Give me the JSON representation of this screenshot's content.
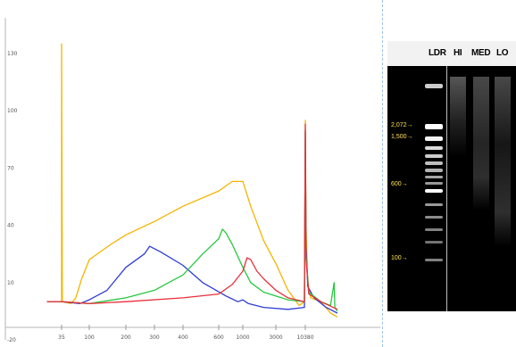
{
  "chart_data": {
    "type": "line",
    "title": "",
    "xlabel": "",
    "ylabel": "",
    "x_tick_labels": [
      "35",
      "100",
      "200",
      "300",
      "400",
      "600",
      "1000",
      "3000",
      "10380"
    ],
    "y_tick_labels": [
      "130",
      "100",
      "70",
      "40",
      "10",
      "-20"
    ],
    "ylim": [
      -20,
      130
    ],
    "grid": false,
    "series": [
      {
        "color": "#f5b400",
        "points": [
          [
            35,
            0
          ],
          [
            35,
            135
          ],
          [
            36,
            0
          ],
          [
            50,
            -1
          ],
          [
            60,
            2
          ],
          [
            75,
            12
          ],
          [
            100,
            22
          ],
          [
            150,
            30
          ],
          [
            200,
            35
          ],
          [
            300,
            42
          ],
          [
            400,
            50
          ],
          [
            600,
            58
          ],
          [
            800,
            63
          ],
          [
            1000,
            63
          ],
          [
            1300,
            50
          ],
          [
            2000,
            32
          ],
          [
            3000,
            20
          ],
          [
            5000,
            6
          ],
          [
            8000,
            -2
          ],
          [
            10000,
            0
          ],
          [
            10380,
            95
          ],
          [
            10700,
            40
          ],
          [
            11500,
            10
          ],
          [
            13000,
            2
          ],
          [
            20000,
            0
          ],
          [
            30000,
            -6
          ],
          [
            40000,
            -8
          ]
        ]
      },
      {
        "color": "#2e3cd6",
        "points": [
          [
            20,
            0
          ],
          [
            35,
            0
          ],
          [
            70,
            -1
          ],
          [
            100,
            1
          ],
          [
            140,
            6
          ],
          [
            200,
            18
          ],
          [
            260,
            25
          ],
          [
            280,
            29
          ],
          [
            320,
            26
          ],
          [
            400,
            19
          ],
          [
            500,
            10
          ],
          [
            700,
            3
          ],
          [
            900,
            0
          ],
          [
            1000,
            1
          ],
          [
            1200,
            -1
          ],
          [
            2000,
            -3
          ],
          [
            5000,
            -4
          ],
          [
            10000,
            -3
          ],
          [
            10380,
            89
          ],
          [
            10700,
            30
          ],
          [
            11500,
            8
          ],
          [
            15000,
            2
          ],
          [
            25000,
            -3
          ],
          [
            40000,
            -6
          ]
        ]
      },
      {
        "color": "#27c840",
        "points": [
          [
            20,
            0
          ],
          [
            35,
            0
          ],
          [
            100,
            -1
          ],
          [
            200,
            2
          ],
          [
            300,
            6
          ],
          [
            400,
            14
          ],
          [
            500,
            25
          ],
          [
            600,
            33
          ],
          [
            650,
            38
          ],
          [
            700,
            36
          ],
          [
            800,
            30
          ],
          [
            1000,
            18
          ],
          [
            1300,
            10
          ],
          [
            2000,
            5
          ],
          [
            5000,
            1
          ],
          [
            10000,
            0
          ],
          [
            10380,
            90
          ],
          [
            10700,
            25
          ],
          [
            12000,
            5
          ],
          [
            20000,
            0
          ],
          [
            30000,
            -2
          ],
          [
            35000,
            10
          ],
          [
            36000,
            -3
          ],
          [
            40000,
            -5
          ]
        ]
      },
      {
        "color": "#e8303a",
        "points": [
          [
            20,
            0
          ],
          [
            35,
            0
          ],
          [
            100,
            -1
          ],
          [
            200,
            0
          ],
          [
            400,
            2
          ],
          [
            600,
            4
          ],
          [
            800,
            9
          ],
          [
            1000,
            16
          ],
          [
            1150,
            23
          ],
          [
            1300,
            22
          ],
          [
            1600,
            16
          ],
          [
            2000,
            12
          ],
          [
            3000,
            6
          ],
          [
            5000,
            2
          ],
          [
            10000,
            0
          ],
          [
            10380,
            93
          ],
          [
            10700,
            22
          ],
          [
            12000,
            4
          ],
          [
            20000,
            0
          ],
          [
            40000,
            -4
          ]
        ]
      }
    ]
  },
  "gel": {
    "lanes": [
      {
        "label": "LDR",
        "color": "#1a1a1a"
      },
      {
        "label": "HI",
        "color": "#ff2d2d"
      },
      {
        "label": "MED",
        "color": "#20c040"
      },
      {
        "label": "LO",
        "color": "#2440ff"
      }
    ],
    "marker_labels": [
      "2,072",
      "1,500",
      "600",
      "100"
    ]
  }
}
